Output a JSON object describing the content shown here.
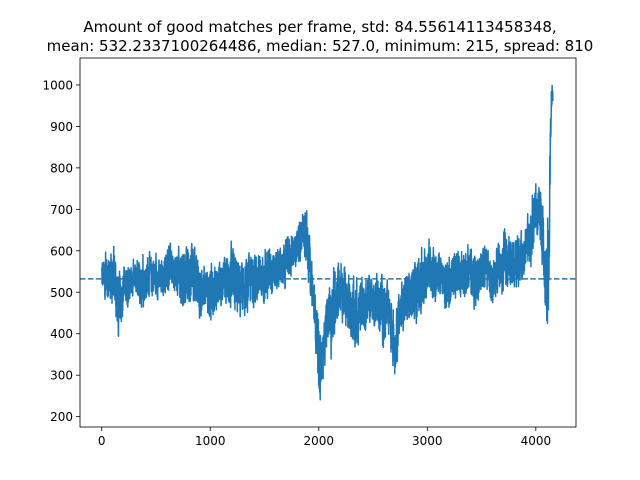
{
  "chart_data": {
    "type": "line",
    "title_lines": [
      "Amount of good matches per frame, std: 84.55614113458348,",
      "mean: 532.2337100264486, median: 527.0, minimum: 215, spread: 810"
    ],
    "xlabel": "",
    "ylabel": "",
    "xlim": [
      -200,
      4370
    ],
    "ylim": [
      175,
      1065
    ],
    "xticks": [
      0,
      1000,
      2000,
      3000,
      4000
    ],
    "yticks": [
      200,
      300,
      400,
      500,
      600,
      700,
      800,
      900,
      1000
    ],
    "grid": false,
    "mean_line": {
      "value": 532.2337100264486,
      "style": "dashed",
      "color": "#1f77b4"
    },
    "series": [
      {
        "name": "good matches per frame",
        "color": "#1f77b4",
        "n_points": 4160,
        "envelope": {
          "description": "approximate local min/max of the noisy per-frame signal, read from the plot",
          "x": [
            0,
            40,
            80,
            120,
            150,
            200,
            260,
            320,
            380,
            440,
            500,
            560,
            620,
            680,
            740,
            800,
            860,
            900,
            960,
            1000,
            1060,
            1120,
            1180,
            1240,
            1300,
            1360,
            1420,
            1480,
            1540,
            1600,
            1660,
            1720,
            1780,
            1840,
            1880,
            1920,
            1960,
            2000,
            2040,
            2080,
            2120,
            2180,
            2240,
            2300,
            2360,
            2420,
            2480,
            2540,
            2600,
            2660,
            2700,
            2760,
            2820,
            2880,
            2940,
            3000,
            3060,
            3120,
            3180,
            3240,
            3300,
            3360,
            3420,
            3480,
            3540,
            3600,
            3660,
            3720,
            3780,
            3820,
            3860,
            3900,
            3940,
            3980,
            4020,
            4060,
            4080,
            4100,
            4120,
            4140,
            4160
          ],
          "min": [
            470,
            465,
            450,
            420,
            330,
            430,
            460,
            470,
            440,
            470,
            460,
            470,
            490,
            480,
            420,
            440,
            440,
            380,
            460,
            380,
            430,
            460,
            420,
            400,
            400,
            450,
            430,
            460,
            440,
            470,
            480,
            500,
            540,
            560,
            550,
            480,
            380,
            215,
            260,
            360,
            320,
            420,
            390,
            360,
            330,
            370,
            410,
            380,
            340,
            350,
            270,
            380,
            390,
            400,
            420,
            460,
            440,
            450,
            430,
            470,
            460,
            460,
            440,
            450,
            500,
            430,
            470,
            470,
            470,
            490,
            500,
            520,
            540,
            560,
            620,
            540,
            450,
            350,
            430,
            900,
            960
          ],
          "max": [
            610,
            615,
            620,
            640,
            600,
            590,
            580,
            600,
            610,
            620,
            600,
            600,
            650,
            620,
            660,
            640,
            640,
            610,
            580,
            600,
            590,
            610,
            630,
            640,
            580,
            620,
            630,
            600,
            640,
            610,
            630,
            660,
            680,
            700,
            775,
            640,
            540,
            470,
            430,
            530,
            560,
            610,
            590,
            560,
            570,
            560,
            560,
            560,
            570,
            540,
            470,
            560,
            580,
            600,
            620,
            640,
            640,
            610,
            610,
            630,
            620,
            640,
            620,
            630,
            650,
            600,
            650,
            680,
            670,
            650,
            660,
            700,
            720,
            800,
            780,
            770,
            600,
            710,
            760,
            1030,
            1025
          ]
        }
      }
    ]
  }
}
